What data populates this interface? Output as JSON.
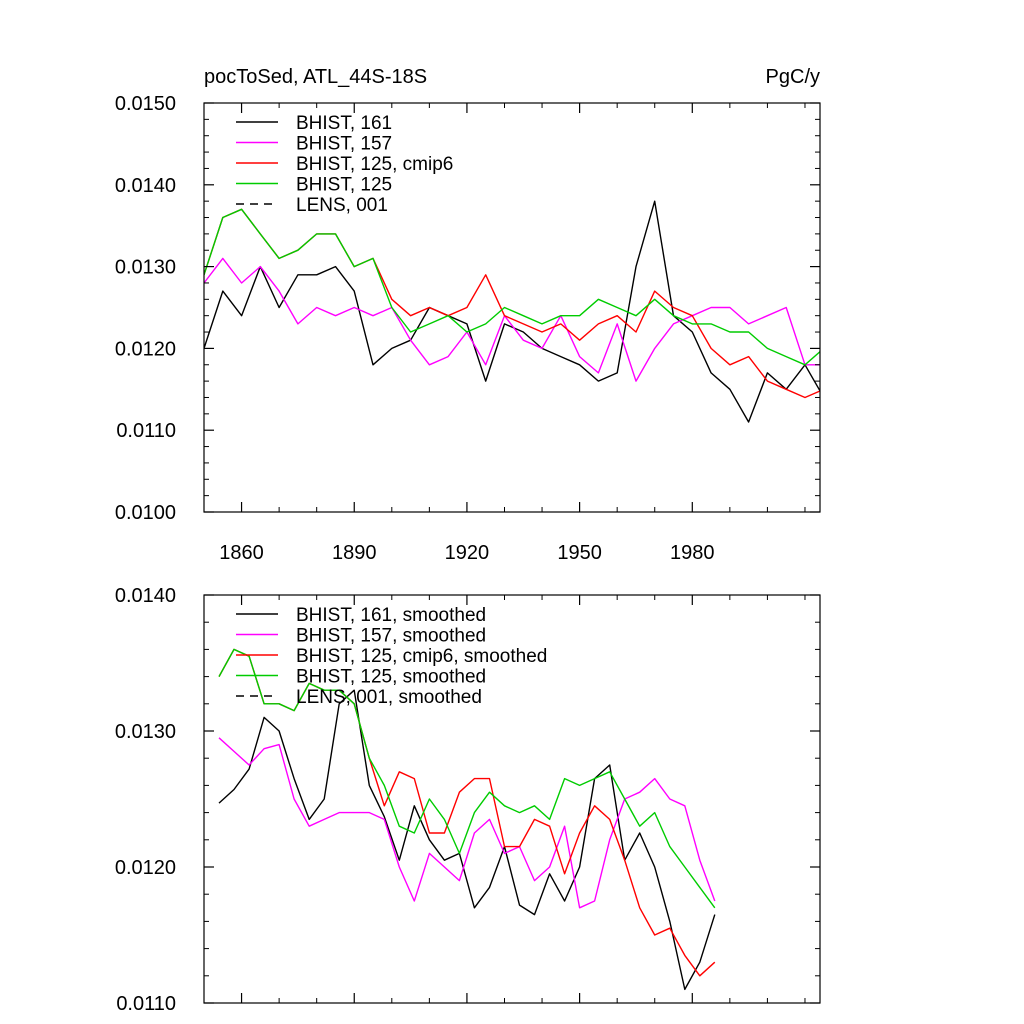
{
  "chart_data": [
    {
      "type": "line",
      "title_left": "pocToSed, ATL_44S-18S",
      "title_right": "PgC/y",
      "xlim": [
        1850,
        2014
      ],
      "ylim": [
        0.01,
        0.015
      ],
      "y_ticks": [
        "0.0100",
        "0.0110",
        "0.0120",
        "0.0130",
        "0.0140",
        "0.0150"
      ],
      "x_ticks": [
        "1860",
        "1890",
        "1920",
        "1950",
        "1980"
      ],
      "x_tick_values": [
        1860,
        1890,
        1920,
        1950,
        1980
      ],
      "legend": [
        {
          "name": "BHIST, 161",
          "color": "#000000",
          "dash": false
        },
        {
          "name": "BHIST, 157",
          "color": "#ff00ff",
          "dash": false
        },
        {
          "name": "BHIST, 125, cmip6",
          "color": "#ff0000",
          "dash": false
        },
        {
          "name": "BHIST, 125",
          "color": "#00cc00",
          "dash": false
        },
        {
          "name": "LENS, 001",
          "color": "#000000",
          "dash": true
        }
      ],
      "series": [
        {
          "name": "BHIST, 161",
          "color": "#000000",
          "x_start": 1850,
          "x_step": 5,
          "values": [
            0.012,
            0.0127,
            0.0124,
            0.013,
            0.0125,
            0.0129,
            0.0129,
            0.013,
            0.0127,
            0.0118,
            0.012,
            0.0121,
            0.0125,
            0.0124,
            0.0123,
            0.0116,
            0.0123,
            0.0122,
            0.012,
            0.0119,
            0.0118,
            0.0116,
            0.0117,
            0.013,
            0.0138,
            0.0124,
            0.0122,
            0.0117,
            0.0115,
            0.0111,
            0.0117,
            0.0115,
            0.0118,
            0.0114
          ]
        },
        {
          "name": "BHIST, 157",
          "color": "#ff00ff",
          "x_start": 1850,
          "x_step": 5,
          "values": [
            0.0128,
            0.0131,
            0.0128,
            0.013,
            0.0127,
            0.0123,
            0.0125,
            0.0124,
            0.0125,
            0.0124,
            0.0125,
            0.0121,
            0.0118,
            0.0119,
            0.0122,
            0.0118,
            0.0124,
            0.0121,
            0.012,
            0.0124,
            0.0119,
            0.0117,
            0.0123,
            0.0116,
            0.012,
            0.0123,
            0.0124,
            0.0125,
            0.0125,
            0.0123,
            0.0124,
            0.0125,
            0.0118,
            0.0118
          ]
        },
        {
          "name": "BHIST, 125, cmip6",
          "color": "#ff0000",
          "x_start": 1850,
          "x_step": 5,
          "values": [
            0.0129,
            0.0136,
            0.0137,
            0.0134,
            0.0131,
            0.0132,
            0.0134,
            0.0134,
            0.013,
            0.0131,
            0.0126,
            0.0124,
            0.0125,
            0.0124,
            0.0125,
            0.0129,
            0.0124,
            0.0123,
            0.0122,
            0.0123,
            0.0121,
            0.0123,
            0.0124,
            0.0122,
            0.0127,
            0.0125,
            0.0124,
            0.012,
            0.0118,
            0.0119,
            0.0116,
            0.0115,
            0.0114,
            0.0115
          ]
        },
        {
          "name": "BHIST, 125",
          "color": "#00cc00",
          "x_start": 1850,
          "x_step": 5,
          "values": [
            0.0129,
            0.0136,
            0.0137,
            0.0134,
            0.0131,
            0.0132,
            0.0134,
            0.0134,
            0.013,
            0.0131,
            0.0125,
            0.0122,
            0.0123,
            0.0124,
            0.0122,
            0.0123,
            0.0125,
            0.0124,
            0.0123,
            0.0124,
            0.0124,
            0.0126,
            0.0125,
            0.0124,
            0.0126,
            0.0124,
            0.0123,
            0.0123,
            0.0122,
            0.0122,
            0.012,
            0.0119,
            0.0118,
            0.012
          ]
        }
      ]
    },
    {
      "type": "line",
      "ylim": [
        0.011,
        0.014
      ],
      "y_ticks": [
        "0.0110",
        "0.0120",
        "0.0130",
        "0.0140"
      ],
      "xlim": [
        1850,
        2014
      ],
      "x_tick_values": [
        1860,
        1890,
        1920,
        1950,
        1980
      ],
      "legend": [
        {
          "name": "BHIST, 161, smoothed",
          "color": "#000000",
          "dash": false
        },
        {
          "name": "BHIST, 157, smoothed",
          "color": "#ff00ff",
          "dash": false
        },
        {
          "name": "BHIST, 125, cmip6, smoothed",
          "color": "#ff0000",
          "dash": false
        },
        {
          "name": "BHIST, 125, smoothed",
          "color": "#00cc00",
          "dash": false
        },
        {
          "name": "LENS, 001, smoothed",
          "color": "#000000",
          "dash": true
        }
      ],
      "series": [
        {
          "name": "BHIST, 161, smoothed",
          "color": "#000000",
          "x_start": 1854,
          "x_step": 4,
          "values": [
            0.01247,
            0.01257,
            0.01272,
            0.0131,
            0.013,
            0.01265,
            0.01235,
            0.0125,
            0.0132,
            0.0133,
            0.0126,
            0.01237,
            0.01205,
            0.01245,
            0.0122,
            0.01205,
            0.0121,
            0.0117,
            0.01185,
            0.01215,
            0.01172,
            0.01165,
            0.01195,
            0.01175,
            0.012,
            0.01265,
            0.01275,
            0.01205,
            0.01225,
            0.012,
            0.0116,
            0.0111,
            0.0113,
            0.01165
          ]
        },
        {
          "name": "BHIST, 157, smoothed",
          "color": "#ff00ff",
          "x_start": 1854,
          "x_step": 4,
          "values": [
            0.01295,
            0.01285,
            0.01275,
            0.01287,
            0.0129,
            0.0125,
            0.0123,
            0.01235,
            0.0124,
            0.0124,
            0.0124,
            0.01235,
            0.012,
            0.01175,
            0.0121,
            0.012,
            0.0119,
            0.01225,
            0.01235,
            0.0121,
            0.01215,
            0.0119,
            0.012,
            0.0123,
            0.0117,
            0.01175,
            0.0122,
            0.0125,
            0.01255,
            0.01265,
            0.0125,
            0.01245,
            0.01205,
            0.01175
          ]
        },
        {
          "name": "BHIST, 125, cmip6, smoothed",
          "color": "#ff0000",
          "x_start": 1854,
          "x_step": 4,
          "values": [
            0.0134,
            0.0136,
            0.01355,
            0.0132,
            0.0132,
            0.01315,
            0.01335,
            0.0133,
            0.0133,
            0.0132,
            0.0128,
            0.01245,
            0.0127,
            0.01265,
            0.01225,
            0.01225,
            0.01255,
            0.01265,
            0.01265,
            0.01215,
            0.01215,
            0.01235,
            0.0123,
            0.01195,
            0.01225,
            0.01245,
            0.01235,
            0.01205,
            0.0117,
            0.0115,
            0.01155,
            0.01135,
            0.0112,
            0.0113
          ]
        },
        {
          "name": "BHIST, 125, smoothed",
          "color": "#00cc00",
          "x_start": 1854,
          "x_step": 4,
          "values": [
            0.0134,
            0.0136,
            0.01355,
            0.0132,
            0.0132,
            0.01315,
            0.01335,
            0.0133,
            0.0133,
            0.0132,
            0.0128,
            0.0126,
            0.0123,
            0.01225,
            0.0125,
            0.01235,
            0.0121,
            0.0124,
            0.01255,
            0.01245,
            0.0124,
            0.01245,
            0.01235,
            0.01265,
            0.0126,
            0.01265,
            0.0127,
            0.0125,
            0.0123,
            0.0124,
            0.01215,
            0.012,
            0.01185,
            0.0117
          ]
        }
      ]
    }
  ]
}
